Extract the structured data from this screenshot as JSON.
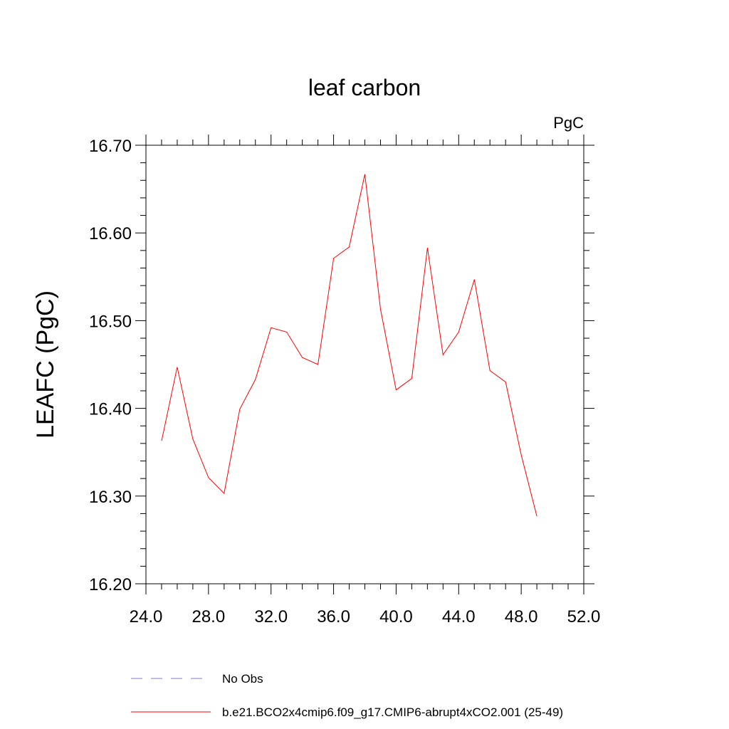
{
  "chart_data": {
    "type": "line",
    "title": "leaf carbon",
    "units": "PgC",
    "xlabel": "",
    "ylabel": "LEAFC  (PgC)",
    "xlim": [
      24,
      52
    ],
    "ylim": [
      16.2,
      16.7
    ],
    "x_ticks": [
      24,
      28,
      32,
      36,
      40,
      44,
      48,
      52
    ],
    "x_tick_labels": [
      "24.0",
      "28.0",
      "32.0",
      "36.0",
      "40.0",
      "44.0",
      "48.0",
      "52.0"
    ],
    "y_ticks": [
      16.2,
      16.3,
      16.4,
      16.5,
      16.6,
      16.7
    ],
    "y_tick_labels": [
      "16.20",
      "16.30",
      "16.40",
      "16.50",
      "16.60",
      "16.70"
    ],
    "grid": false,
    "legend_position": "bottom",
    "series": [
      {
        "name": "No Obs",
        "color": "#7b7bd6",
        "dash": "dashed",
        "x": [],
        "y": []
      },
      {
        "name": "b.e21.BCO2x4cmip6.f09_g17.CMIP6-abrupt4xCO2.001 (25-49)",
        "color": "#ff0000",
        "dash": "solid",
        "x": [
          25,
          26,
          27,
          28,
          29,
          30,
          31,
          32,
          33,
          34,
          35,
          36,
          37,
          38,
          39,
          40,
          41,
          42,
          43,
          44,
          45,
          46,
          47,
          48,
          49
        ],
        "y": [
          16.363,
          16.447,
          16.365,
          16.321,
          16.303,
          16.399,
          16.433,
          16.492,
          16.487,
          16.458,
          16.45,
          16.571,
          16.584,
          16.667,
          16.513,
          16.421,
          16.434,
          16.583,
          16.461,
          16.487,
          16.547,
          16.443,
          16.43,
          16.347,
          16.277
        ]
      }
    ]
  }
}
